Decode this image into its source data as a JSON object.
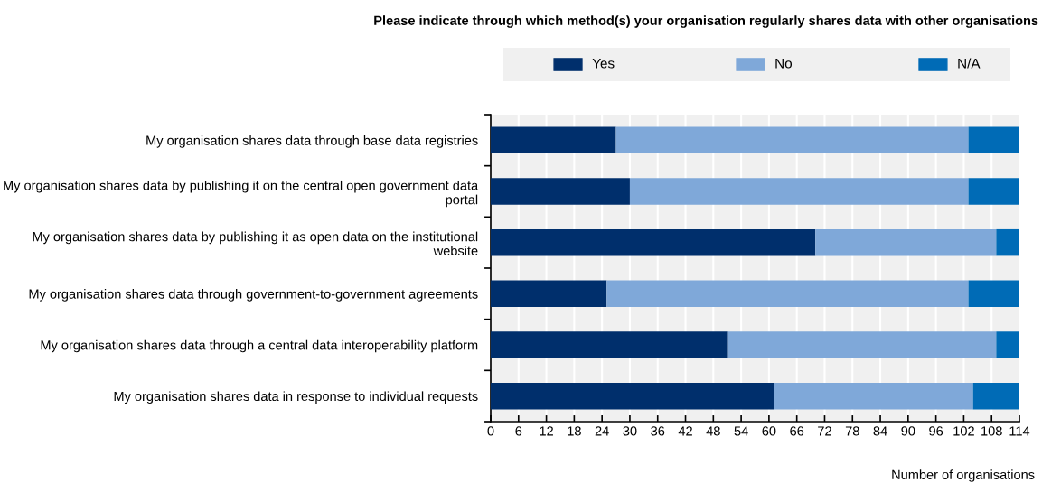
{
  "chart_data": {
    "type": "bar",
    "orientation": "horizontal",
    "stacked": true,
    "title": "Please indicate through which method(s) your organisation regularly shares data with other organisations",
    "xlabel": "Number of organisations",
    "categories": [
      "My organisation shares data through base data registries",
      "My organisation shares data by publishing it on the central open government data portal",
      "My organisation shares data by publishing it as open data on the institutional website",
      "My organisation shares data through government-to-government agreements",
      "My organisation shares data through a central data interoperability platform",
      "My organisation shares data in response to individual requests"
    ],
    "series": [
      {
        "name": "Yes",
        "color": "#002f6c",
        "values": [
          27,
          30,
          70,
          25,
          51,
          61
        ]
      },
      {
        "name": "No",
        "color": "#7fa8d9",
        "values": [
          76,
          73,
          39,
          78,
          58,
          43
        ]
      },
      {
        "name": "N/A",
        "color": "#006bb6",
        "values": [
          11,
          11,
          5,
          11,
          5,
          10
        ]
      }
    ],
    "xlim": [
      0,
      114
    ],
    "xticks": [
      0,
      6,
      12,
      18,
      24,
      30,
      36,
      42,
      48,
      54,
      60,
      66,
      72,
      78,
      84,
      90,
      96,
      102,
      108,
      114
    ],
    "grid": "x",
    "legend": "top"
  }
}
